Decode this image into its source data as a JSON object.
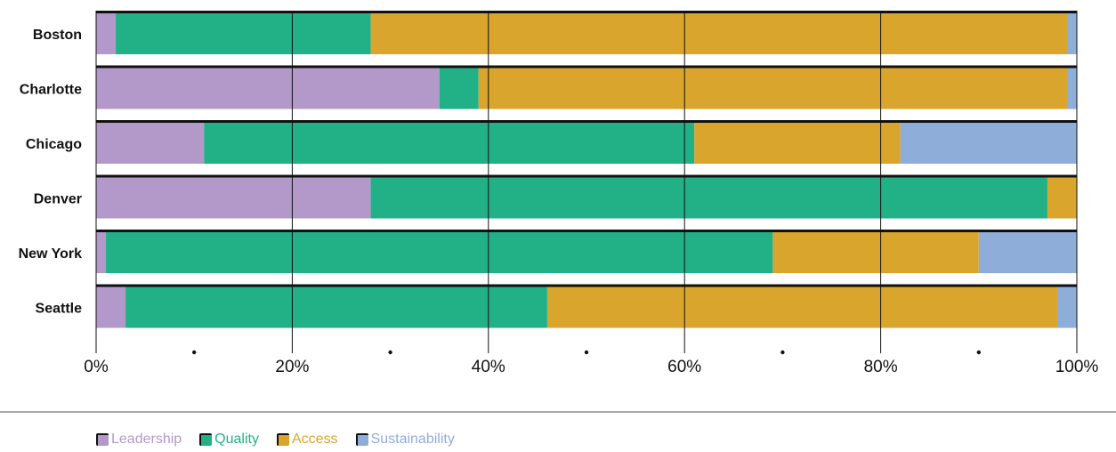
{
  "chart_data": {
    "type": "bar",
    "orientation": "horizontal",
    "stacked": true,
    "normalized": true,
    "categories": [
      "Boston",
      "Charlotte",
      "Chicago",
      "Denver",
      "New York",
      "Seattle"
    ],
    "series": [
      {
        "name": "Leadership",
        "color": "#b399c9",
        "values": [
          2.0,
          35.0,
          11.0,
          28.0,
          1.0,
          3.0
        ]
      },
      {
        "name": "Quality",
        "color": "#22b187",
        "values": [
          26.0,
          4.0,
          50.0,
          69.0,
          68.0,
          43.0
        ]
      },
      {
        "name": "Access",
        "color": "#d9a52c",
        "values": [
          71.0,
          60.0,
          21.0,
          3.0,
          21.0,
          52.0
        ]
      },
      {
        "name": "Sustainability",
        "color": "#8fadd9",
        "values": [
          1.0,
          1.0,
          18.0,
          0.0,
          10.0,
          2.0
        ]
      }
    ],
    "xlim": [
      0,
      100
    ],
    "x_ticks": [
      "0%",
      "20%",
      "40%",
      "60%",
      "80%",
      "100%"
    ],
    "grid": true,
    "legend_position": "bottom-left"
  }
}
